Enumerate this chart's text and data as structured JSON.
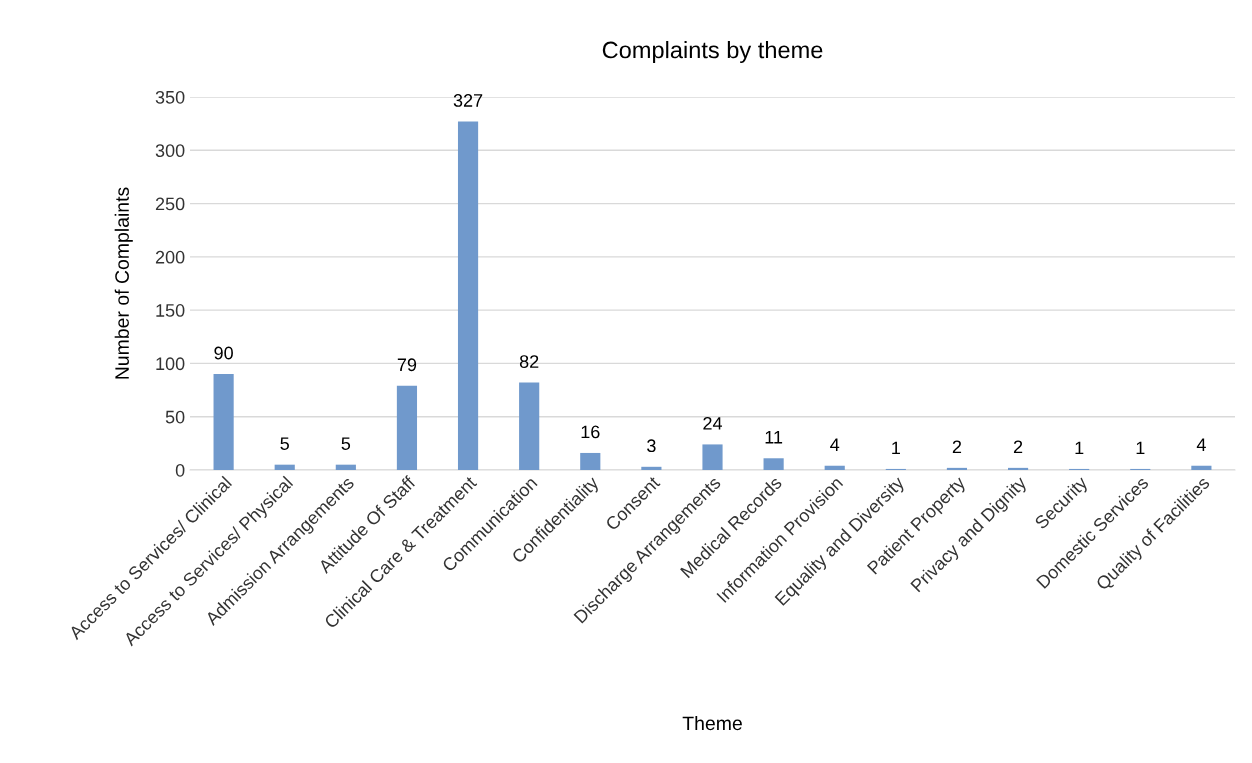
{
  "chart_data": {
    "type": "bar",
    "title": "Complaints by theme",
    "xlabel": "Theme",
    "ylabel": "Number of Complaints",
    "categories": [
      "Access to Services/ Clinical",
      "Access to Services/ Physical",
      "Admission Arrangements",
      "Attitude Of Staff",
      "Clinical Care & Treatment",
      "Communication",
      "Confidentiality",
      "Consent",
      "Discharge Arrangements",
      "Medical Records",
      "Information Provision",
      "Equality and Diversity",
      "Patient Property",
      "Privacy and Dignity",
      "Security",
      "Domestic Services",
      "Quality of Facilities"
    ],
    "values": [
      90,
      5,
      5,
      79,
      327,
      82,
      16,
      3,
      24,
      11,
      4,
      1,
      2,
      2,
      1,
      1,
      4
    ],
    "color": "#7099cc",
    "ylim": [
      0,
      350
    ],
    "yticks": [
      0,
      50,
      100,
      150,
      200,
      250,
      300,
      350
    ],
    "grid": "y",
    "data_labels": true
  }
}
